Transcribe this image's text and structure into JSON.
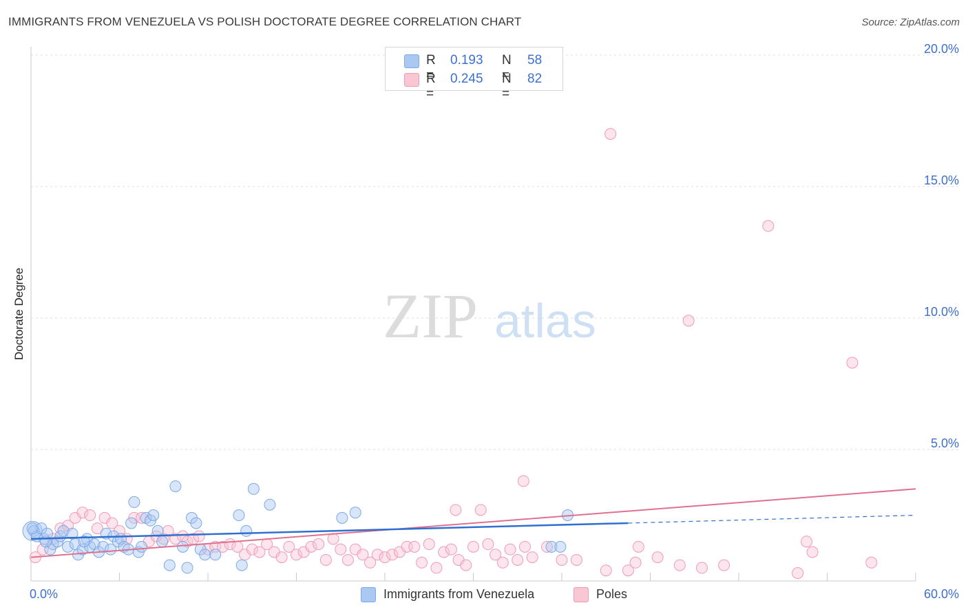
{
  "title": "IMMIGRANTS FROM VENEZUELA VS POLISH DOCTORATE DEGREE CORRELATION CHART",
  "source": "Source: ZipAtlas.com",
  "watermark": {
    "zip": "ZIP",
    "atlas": "atlas"
  },
  "legend": {
    "r_label": "R =",
    "n_label": "N =",
    "rows": [
      {
        "name": "Immigrants from Venezuela",
        "r": "0.193",
        "n": "58",
        "color": "#aac8f2",
        "border": "#7aa8e8"
      },
      {
        "name": "Poles",
        "r": "0.245",
        "n": "82",
        "color": "#f9c6d4",
        "border": "#f09ab5"
      }
    ]
  },
  "chart_data": {
    "type": "scatter",
    "title": "IMMIGRANTS FROM VENEZUELA VS POLISH DOCTORATE DEGREE CORRELATION CHART",
    "xlabel": "",
    "ylabel": "Doctorate Degree",
    "xlim": [
      0,
      60
    ],
    "ylim": [
      0,
      20
    ],
    "x_tick_labels": [
      "0.0%",
      "60.0%"
    ],
    "y_ticks": [
      5,
      10,
      15,
      20
    ],
    "y_tick_labels": [
      "5.0%",
      "10.0%",
      "15.0%",
      "20.0%"
    ],
    "grid": true,
    "series": [
      {
        "name": "Immigrants from Venezuela",
        "color": "#7aa8e8",
        "fill": "rgba(170,200,242,0.45)",
        "line_color": "#2e6fd0",
        "trend": {
          "x0": 0,
          "y0": 1.6,
          "x_solid_end": 40.5,
          "y_solid_end": 2.2,
          "x1": 60,
          "y1": 2.5
        },
        "points": [
          [
            0.2,
            1.9
          ],
          [
            0.4,
            1.7
          ],
          [
            0.7,
            2.0
          ],
          [
            0.9,
            1.6
          ],
          [
            1.1,
            1.8
          ],
          [
            1.3,
            1.2
          ],
          [
            1.5,
            1.4
          ],
          [
            1.8,
            1.5
          ],
          [
            2.0,
            1.7
          ],
          [
            2.2,
            1.9
          ],
          [
            2.5,
            1.3
          ],
          [
            2.8,
            1.8
          ],
          [
            3.0,
            1.4
          ],
          [
            3.2,
            1.0
          ],
          [
            3.5,
            1.2
          ],
          [
            3.8,
            1.6
          ],
          [
            4.0,
            1.3
          ],
          [
            4.3,
            1.4
          ],
          [
            4.6,
            1.1
          ],
          [
            4.9,
            1.3
          ],
          [
            5.1,
            1.8
          ],
          [
            5.4,
            1.2
          ],
          [
            5.6,
            1.7
          ],
          [
            5.9,
            1.5
          ],
          [
            6.1,
            1.6
          ],
          [
            6.3,
            1.3
          ],
          [
            6.6,
            1.2
          ],
          [
            6.8,
            2.2
          ],
          [
            7.0,
            3.0
          ],
          [
            7.3,
            1.1
          ],
          [
            7.5,
            1.3
          ],
          [
            7.8,
            2.4
          ],
          [
            8.1,
            2.3
          ],
          [
            8.3,
            2.5
          ],
          [
            8.6,
            1.9
          ],
          [
            8.9,
            1.5
          ],
          [
            9.4,
            0.6
          ],
          [
            9.8,
            3.6
          ],
          [
            10.3,
            1.3
          ],
          [
            10.6,
            0.5
          ],
          [
            10.9,
            2.4
          ],
          [
            11.2,
            2.2
          ],
          [
            11.5,
            1.2
          ],
          [
            11.8,
            1.0
          ],
          [
            12.5,
            1.0
          ],
          [
            14.1,
            2.5
          ],
          [
            14.3,
            0.6
          ],
          [
            14.6,
            1.9
          ],
          [
            15.1,
            3.5
          ],
          [
            16.2,
            2.9
          ],
          [
            21.1,
            2.4
          ],
          [
            22.0,
            2.6
          ],
          [
            35.3,
            1.3
          ],
          [
            35.9,
            1.3
          ],
          [
            36.4,
            2.5
          ],
          [
            0.1,
            2.0
          ],
          [
            1.0,
            1.5
          ],
          [
            3.6,
            1.5
          ]
        ]
      },
      {
        "name": "Poles",
        "color": "#f09ab5",
        "fill": "rgba(249,198,212,0.45)",
        "line_color": "#e0708f",
        "trend": {
          "x0": 0,
          "y0": 0.9,
          "x1": 60,
          "y1": 3.5
        },
        "points": [
          [
            0.3,
            0.9
          ],
          [
            0.8,
            1.2
          ],
          [
            1.5,
            1.6
          ],
          [
            2.0,
            2.0
          ],
          [
            2.5,
            2.1
          ],
          [
            3.0,
            2.4
          ],
          [
            3.5,
            2.6
          ],
          [
            4.0,
            2.5
          ],
          [
            4.5,
            2.0
          ],
          [
            5.0,
            2.4
          ],
          [
            5.5,
            2.2
          ],
          [
            6.0,
            1.9
          ],
          [
            6.5,
            1.6
          ],
          [
            7.0,
            2.4
          ],
          [
            7.5,
            2.4
          ],
          [
            8.0,
            1.5
          ],
          [
            8.5,
            1.7
          ],
          [
            9.0,
            1.6
          ],
          [
            9.3,
            1.9
          ],
          [
            9.8,
            1.6
          ],
          [
            10.3,
            1.7
          ],
          [
            10.6,
            1.5
          ],
          [
            11.0,
            1.6
          ],
          [
            11.4,
            1.7
          ],
          [
            12.0,
            1.2
          ],
          [
            12.5,
            1.3
          ],
          [
            13.0,
            1.3
          ],
          [
            13.5,
            1.4
          ],
          [
            14.0,
            1.3
          ],
          [
            14.5,
            1.0
          ],
          [
            15.0,
            1.2
          ],
          [
            15.5,
            1.1
          ],
          [
            16.0,
            1.4
          ],
          [
            16.5,
            1.1
          ],
          [
            17.0,
            0.9
          ],
          [
            17.5,
            1.3
          ],
          [
            18.0,
            1.0
          ],
          [
            18.5,
            1.1
          ],
          [
            19.0,
            1.3
          ],
          [
            19.5,
            1.4
          ],
          [
            20.0,
            0.8
          ],
          [
            20.5,
            1.6
          ],
          [
            21.0,
            1.2
          ],
          [
            21.5,
            0.8
          ],
          [
            22.0,
            1.2
          ],
          [
            22.5,
            1.0
          ],
          [
            23.0,
            0.7
          ],
          [
            23.5,
            1.0
          ],
          [
            24.0,
            0.9
          ],
          [
            24.5,
            1.0
          ],
          [
            25.0,
            1.1
          ],
          [
            25.5,
            1.3
          ],
          [
            26.0,
            1.3
          ],
          [
            26.5,
            0.7
          ],
          [
            27.0,
            1.4
          ],
          [
            27.5,
            0.5
          ],
          [
            28.0,
            1.1
          ],
          [
            28.5,
            1.2
          ],
          [
            29.0,
            0.8
          ],
          [
            29.5,
            0.6
          ],
          [
            30.0,
            1.3
          ],
          [
            30.5,
            2.7
          ],
          [
            31.0,
            1.4
          ],
          [
            31.5,
            1.0
          ],
          [
            32.0,
            0.7
          ],
          [
            32.5,
            1.2
          ],
          [
            33.0,
            0.8
          ],
          [
            33.5,
            1.3
          ],
          [
            34.0,
            0.9
          ],
          [
            35.0,
            1.3
          ],
          [
            36.0,
            0.8
          ],
          [
            37.0,
            0.8
          ],
          [
            39.0,
            0.4
          ],
          [
            40.5,
            0.4
          ],
          [
            41.0,
            0.7
          ],
          [
            42.5,
            0.9
          ],
          [
            44.0,
            0.6
          ],
          [
            45.5,
            0.5
          ],
          [
            47.0,
            0.6
          ],
          [
            52.0,
            0.3
          ],
          [
            53.0,
            1.1
          ],
          [
            57.0,
            0.7
          ]
        ]
      }
    ],
    "outliers_poles": [
      [
        39.3,
        17.0
      ],
      [
        50.0,
        13.5
      ],
      [
        44.6,
        9.9
      ],
      [
        55.7,
        8.3
      ],
      [
        33.4,
        3.8
      ],
      [
        28.8,
        2.7
      ],
      [
        41.2,
        1.3
      ],
      [
        52.6,
        1.5
      ]
    ]
  }
}
